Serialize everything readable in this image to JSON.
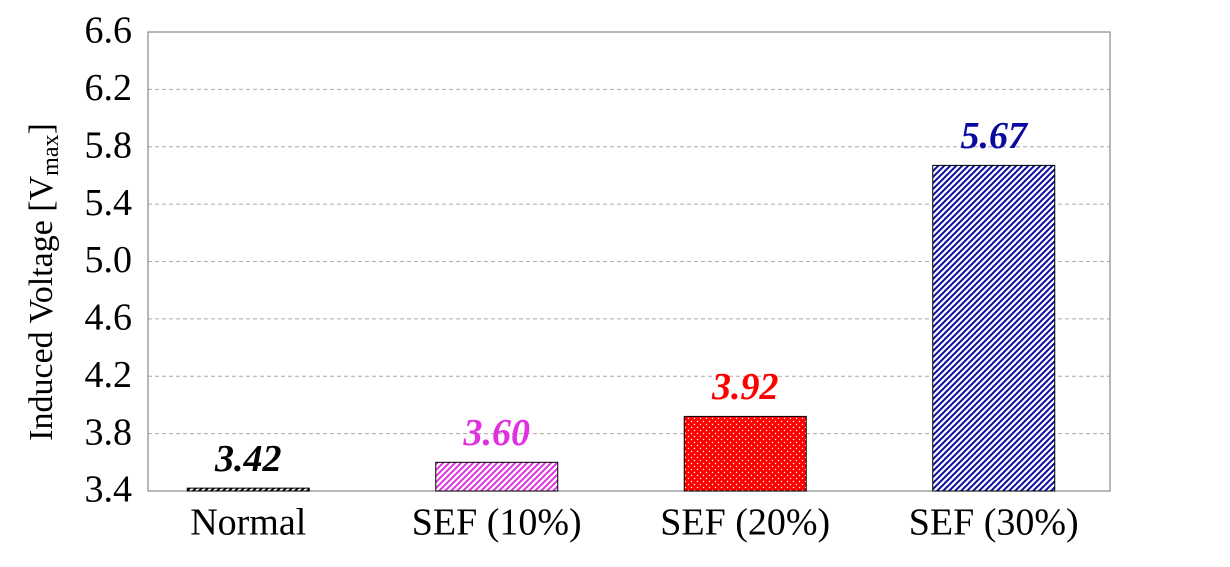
{
  "chart_data": {
    "type": "bar",
    "y_label": "Induced Voltage [V",
    "y_label_sub": "max",
    "y_label_end": "]",
    "categories": [
      "Normal",
      "SEF (10%)",
      "SEF (20%)",
      "SEF (30%)"
    ],
    "values": [
      3.42,
      3.6,
      3.92,
      5.67
    ],
    "value_labels": [
      "3.42",
      "3.60",
      "3.92",
      "5.67"
    ],
    "colors": [
      "#000000",
      "#e030e0",
      "#ff0000",
      "#0a0aa0"
    ],
    "patterns": [
      "hatch",
      "hatch",
      "dots",
      "hatch"
    ],
    "ylim": [
      3.4,
      6.6
    ],
    "yticks": [
      3.4,
      3.8,
      4.2,
      4.6,
      {
        "value": 5,
        "label": "5.0"
      },
      5.4,
      5.8,
      6.2,
      6.6
    ],
    "grid": true
  }
}
